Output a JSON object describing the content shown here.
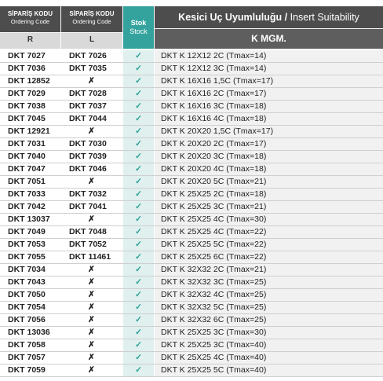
{
  "header": {
    "code_r": {
      "title": "SİPARİŞ KODU",
      "subtitle": "Ordering Code",
      "side": "R"
    },
    "code_l": {
      "title": "SİPARİŞ KODU",
      "subtitle": "Ordering Code",
      "side": "L"
    },
    "stock": {
      "title": "Stok",
      "subtitle": "Stock"
    },
    "suitability": {
      "title": "Kesici Uç Uyumluluğu /",
      "subtitle": "Insert Suitability",
      "group": "K MGM."
    }
  },
  "table": {
    "rows": [
      [
        "DKT 7027",
        "DKT 7026",
        "✓",
        "DKT K 12X12 2C (Tmax=14)"
      ],
      [
        "DKT 7036",
        "DKT 7035",
        "✓",
        "DKT K 12X12 3C (Tmax=14)"
      ],
      [
        "DKT 12852",
        "✗",
        "✓",
        "DKT K 16X16 1,5C (Tmax=17)"
      ],
      [
        "DKT 7029",
        "DKT 7028",
        "✓",
        "DKT K 16X16 2C (Tmax=17)"
      ],
      [
        "DKT 7038",
        "DKT 7037",
        "✓",
        "DKT K 16X16 3C (Tmax=18)"
      ],
      [
        "DKT 7045",
        "DKT 7044",
        "✓",
        "DKT K 16X16 4C (Tmax=18)"
      ],
      [
        "DKT 12921",
        "✗",
        "✓",
        "DKT K 20X20 1,5C (Tmax=17)"
      ],
      [
        "DKT 7031",
        "DKT 7030",
        "✓",
        "DKT K 20X20 2C (Tmax=17)"
      ],
      [
        "DKT 7040",
        "DKT 7039",
        "✓",
        "DKT K 20X20 3C (Tmax=18)"
      ],
      [
        "DKT 7047",
        "DKT 7046",
        "✓",
        "DKT K 20X20 4C (Tmax=18)"
      ],
      [
        "DKT 7051",
        "✗",
        "✓",
        "DKT K 20X20 5C (Tmax=21)"
      ],
      [
        "DKT 7033",
        "DKT 7032",
        "✓",
        "DKT K 25X25 2C (Tmax=18)"
      ],
      [
        "DKT 7042",
        "DKT 7041",
        "✓",
        "DKT K 25X25 3C (Tmax=21)"
      ],
      [
        "DKT 13037",
        "✗",
        "✓",
        "DKT K 25X25 4C (Tmax=30)"
      ],
      [
        "DKT 7049",
        "DKT 7048",
        "✓",
        "DKT K 25X25 4C (Tmax=22)"
      ],
      [
        "DKT 7053",
        "DKT 7052",
        "✓",
        "DKT K 25X25 5C (Tmax=22)"
      ],
      [
        "DKT 7055",
        "DKT 11461",
        "✓",
        "DKT K 25X25 6C (Tmax=22)"
      ],
      [
        "DKT 7034",
        "✗",
        "✓",
        "DKT K 32X32 2C (Tmax=21)"
      ],
      [
        "DKT 7043",
        "✗",
        "✓",
        "DKT K 32X32 3C (Tmax=25)"
      ],
      [
        "DKT 7050",
        "✗",
        "✓",
        "DKT K 32X32 4C (Tmax=25)"
      ],
      [
        "DKT 7054",
        "✗",
        "✓",
        "DKT K 32X32 5C (Tmax=25)"
      ],
      [
        "DKT 7056",
        "✗",
        "✓",
        "DKT K 32X32 6C (Tmax=25)"
      ],
      [
        "DKT 13036",
        "✗",
        "✓",
        "DKT K 25X25 3C (Tmax=30)"
      ],
      [
        "DKT 7058",
        "✗",
        "✓",
        "DKT K 25X25 3C (Tmax=40)"
      ],
      [
        "DKT 7057",
        "✗",
        "✓",
        "DKT K 25X25 4C (Tmax=40)"
      ],
      [
        "DKT 7059",
        "✗",
        "✓",
        "DKT K 25X25 5C (Tmax=40)"
      ]
    ]
  }
}
